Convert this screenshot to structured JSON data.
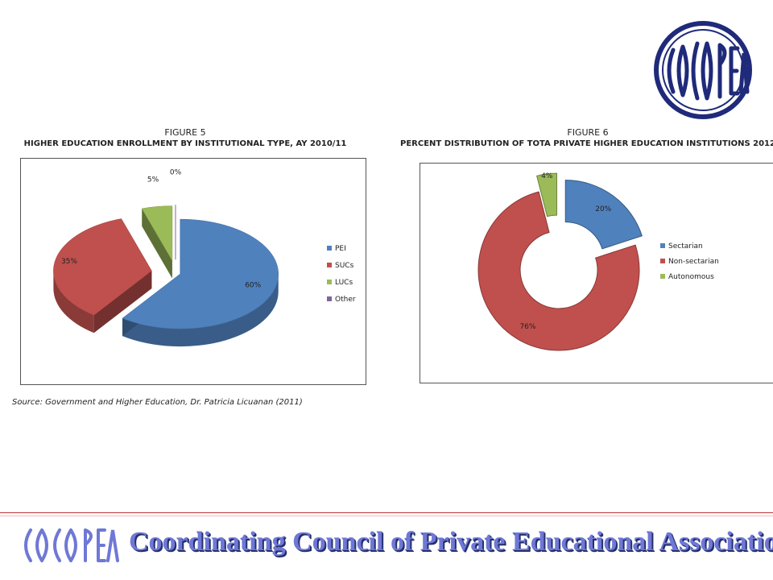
{
  "logo": {
    "top_text": "COCOPEA",
    "footer_text": "COCOPEA"
  },
  "footer": {
    "title": "Coordinating Council of Private Educational Associations"
  },
  "source": "Source: Government and Higher Education, Dr. Patricia Licuanan (2011)",
  "colors": {
    "blue": "#4f81bd",
    "red": "#c0504d",
    "green": "#9bbb59",
    "purple": "#8064a2",
    "logo_navy": "#1f2a7a"
  },
  "chart_data": [
    {
      "type": "pie",
      "figure_number": "FIGURE 5",
      "title": "HIGHER EDUCATION ENROLLMENT BY INSTITUTIONAL TYPE, AY 2010/11",
      "style": "exploded-3d",
      "legend_position": "right",
      "categories": [
        "PEI",
        "SUCs",
        "LUCs",
        "Other"
      ],
      "values": [
        60,
        35,
        5,
        0
      ],
      "labels": [
        "60%",
        "35%",
        "5%",
        "0%"
      ],
      "colors": [
        "#4f81bd",
        "#c0504d",
        "#9bbb59",
        "#8064a2"
      ]
    },
    {
      "type": "pie",
      "figure_number": "FIGURE 6",
      "title": "PERCENT DISTRIBUTION OF TOTA PRIVATE HIGHER EDUCATION INSTITUTIONS 2012",
      "style": "exploded-doughnut",
      "legend_position": "right",
      "categories": [
        "Sectarian",
        "Non-sectarian",
        "Autonomous"
      ],
      "values": [
        20,
        76,
        4
      ],
      "labels": [
        "20%",
        "76%",
        "4%"
      ],
      "colors": [
        "#4f81bd",
        "#c0504d",
        "#9bbb59"
      ]
    }
  ]
}
